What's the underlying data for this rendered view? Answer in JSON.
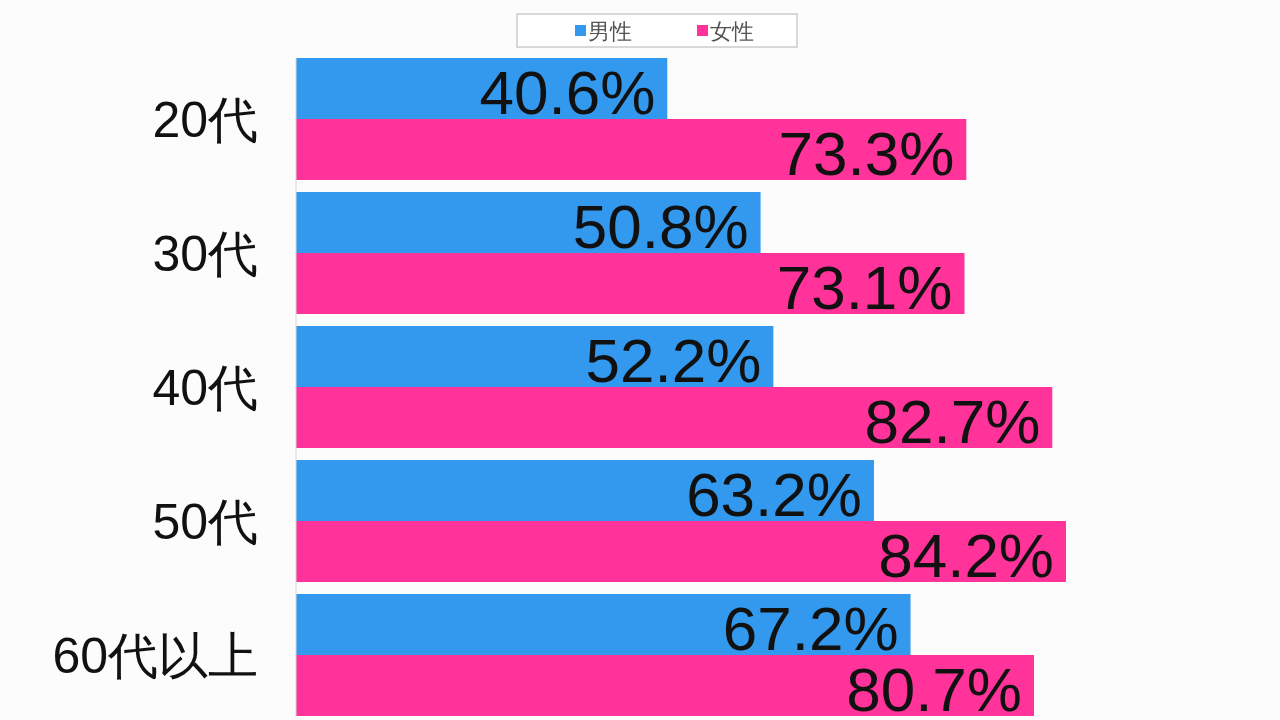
{
  "chart_data": {
    "type": "bar",
    "orientation": "horizontal",
    "categories": [
      "20代",
      "30代",
      "40代",
      "50代",
      "60代以上"
    ],
    "series": [
      {
        "name": "男性",
        "color": "#3399ee",
        "values": [
          40.6,
          50.8,
          52.2,
          63.2,
          67.2
        ],
        "value_labels": [
          "40.6%",
          "50.8%",
          "52.2%",
          "63.2%",
          "67.2%"
        ]
      },
      {
        "name": "女性",
        "color": "#ff3399",
        "values": [
          73.3,
          73.1,
          82.7,
          84.2,
          80.7
        ],
        "value_labels": [
          "73.3%",
          "73.1%",
          "82.7%",
          "84.2%",
          "80.7%"
        ]
      }
    ],
    "legend": "top",
    "tick_labels": "y"
  }
}
